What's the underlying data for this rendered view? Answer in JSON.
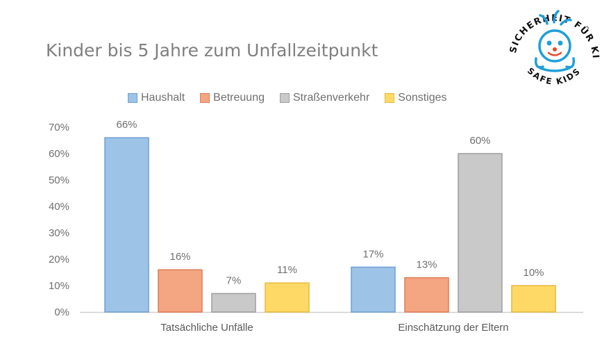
{
  "chart_data": {
    "type": "bar",
    "title": "Kinder bis 5 Jahre zum Unfallzeitpunkt",
    "categories": [
      "Tatsächliche Unfälle",
      "Einschätzung der Eltern"
    ],
    "series": [
      {
        "name": "Haushalt",
        "values": [
          66,
          17
        ],
        "color": "#9dc3e6",
        "edge": "#6d9fd3"
      },
      {
        "name": "Betreuung",
        "values": [
          16,
          13
        ],
        "color": "#f4a582",
        "edge": "#e07c54"
      },
      {
        "name": "Straßenverkehr",
        "values": [
          7,
          60
        ],
        "color": "#c9c9c9",
        "edge": "#9e9e9e"
      },
      {
        "name": "Sonstiges",
        "values": [
          11,
          10
        ],
        "color": "#ffd966",
        "edge": "#e6b93a"
      }
    ],
    "ylim": [
      0,
      70
    ],
    "yticks": [
      "0%",
      "10%",
      "20%",
      "30%",
      "40%",
      "50%",
      "60%",
      "70%"
    ],
    "value_suffix": "%",
    "legend_position": "top",
    "grid": false
  },
  "logo": {
    "text_top": "MEHR SICHERHEIT FÜR KINDER",
    "text_bottom": "SAFE KIDS"
  }
}
